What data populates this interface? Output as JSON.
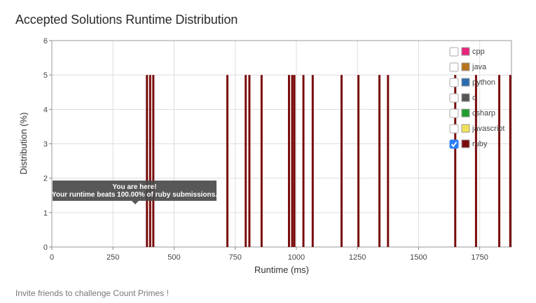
{
  "header": {
    "title": "Accepted Solutions Runtime Distribution"
  },
  "footer": {
    "text": "Invite friends to challenge Count Primes !"
  },
  "tooltip": {
    "line1": "You are here!",
    "line2": "Your runtime beats 100.00% of ruby submissions.",
    "runtime": 335
  },
  "legend": {
    "items": [
      {
        "label": "cpp",
        "color": "#e8237b",
        "checked": false
      },
      {
        "label": "java",
        "color": "#b8741c",
        "checked": false
      },
      {
        "label": "python",
        "color": "#2b6cb0",
        "checked": false
      },
      {
        "label": "c",
        "color": "#555555",
        "checked": false
      },
      {
        "label": "csharp",
        "color": "#1f9e2f",
        "checked": false
      },
      {
        "label": "javascript",
        "color": "#f0e256",
        "checked": false
      },
      {
        "label": "ruby",
        "color": "#7a0c0c",
        "checked": true
      }
    ]
  },
  "chart_data": {
    "type": "bar",
    "xlabel": "Runtime (ms)",
    "ylabel": "Distribution (%)",
    "xlim": [
      0,
      1880
    ],
    "ylim": [
      0,
      6
    ],
    "xticks": [
      0,
      250,
      500,
      750,
      1000,
      1250,
      1500,
      1750
    ],
    "yticks": [
      0,
      1,
      2,
      3,
      4,
      5,
      6
    ],
    "grid": true,
    "legend_position": "top-right",
    "series": [
      {
        "name": "ruby",
        "color": "#7a0c0c",
        "x": [
          389,
          402,
          415,
          718,
          793,
          808,
          858,
          970,
          983,
          992,
          1029,
          1067,
          1185,
          1254,
          1340,
          1375,
          1650,
          1735,
          1830,
          1875
        ],
        "values": [
          5,
          5,
          5,
          5,
          5,
          5,
          5,
          5,
          5,
          5,
          5,
          5,
          5,
          5,
          5,
          5,
          5,
          5,
          5,
          5
        ]
      }
    ]
  }
}
